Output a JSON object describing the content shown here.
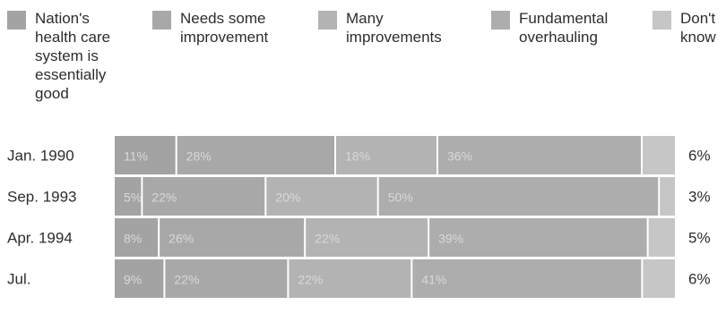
{
  "chart_data": {
    "type": "bar",
    "stacked": true,
    "orientation": "horizontal",
    "normalized_percent": true,
    "categories": [
      "Jan. 1990",
      "Sep. 1993",
      "Apr. 1994",
      "Jul."
    ],
    "series": [
      {
        "name": "Nation's\nhealth care\nsystem is\nessentially\ngood",
        "values": [
          11,
          5,
          8,
          9
        ],
        "color": "#a3a3a3"
      },
      {
        "name": "Needs some\nimprovement",
        "values": [
          28,
          22,
          26,
          22
        ],
        "color": "#a8a8a8"
      },
      {
        "name": "Many\nimprovements",
        "values": [
          18,
          20,
          22,
          22
        ],
        "color": "#b3b3b3"
      },
      {
        "name": "Fundamental\noverhauling",
        "values": [
          36,
          50,
          39,
          41
        ],
        "color": "#adadad"
      },
      {
        "name": "Don't\nknow",
        "values": [
          6,
          3,
          5,
          6
        ],
        "color": "#c6c6c6"
      }
    ],
    "segment_labels": [
      [
        "11%",
        "28%",
        "18%",
        "36%",
        "6%"
      ],
      [
        "5%",
        "22%",
        "20%",
        "50%",
        "3%"
      ],
      [
        "8%",
        "26%",
        "22%",
        "39%",
        "5%"
      ],
      [
        "9%",
        "22%",
        "22%",
        "41%",
        "6%"
      ]
    ],
    "legend_position": "top",
    "grid": false,
    "title": "",
    "xlabel": "",
    "ylabel": ""
  }
}
